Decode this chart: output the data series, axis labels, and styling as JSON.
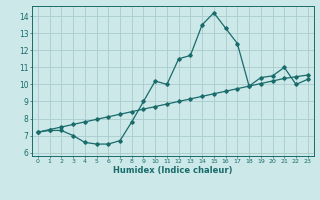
{
  "title": "",
  "xlabel": "Humidex (Indice chaleur)",
  "bg_color": "#cce8e8",
  "grid_color": "#aacccc",
  "line_color": "#1a6b6b",
  "xlim": [
    -0.5,
    23.5
  ],
  "ylim": [
    5.8,
    14.6
  ],
  "yticks": [
    6,
    7,
    8,
    9,
    10,
    11,
    12,
    13,
    14
  ],
  "xticks": [
    0,
    1,
    2,
    3,
    4,
    5,
    6,
    7,
    8,
    9,
    10,
    11,
    12,
    13,
    14,
    15,
    16,
    17,
    18,
    19,
    20,
    21,
    22,
    23
  ],
  "curve1_x": [
    0,
    1,
    2,
    3,
    4,
    5,
    6,
    7,
    8,
    9,
    10,
    11,
    12,
    13,
    14,
    15,
    16,
    17,
    18,
    19,
    20,
    21,
    22,
    23
  ],
  "curve1_y": [
    7.2,
    7.3,
    7.3,
    7.0,
    6.6,
    6.5,
    6.5,
    6.7,
    7.8,
    9.0,
    10.2,
    10.0,
    11.5,
    11.7,
    13.5,
    14.2,
    13.3,
    12.4,
    9.9,
    10.4,
    10.5,
    11.0,
    10.0,
    10.3
  ],
  "curve2_x": [
    0,
    1,
    2,
    3,
    4,
    5,
    6,
    7,
    8,
    9,
    10,
    11,
    12,
    13,
    14,
    15,
    16,
    17,
    18,
    19,
    20,
    21,
    22,
    23
  ],
  "curve2_y": [
    7.2,
    7.35,
    7.5,
    7.65,
    7.8,
    7.95,
    8.1,
    8.25,
    8.4,
    8.55,
    8.7,
    8.85,
    9.0,
    9.15,
    9.3,
    9.45,
    9.6,
    9.75,
    9.9,
    10.05,
    10.2,
    10.35,
    10.45,
    10.55
  ]
}
